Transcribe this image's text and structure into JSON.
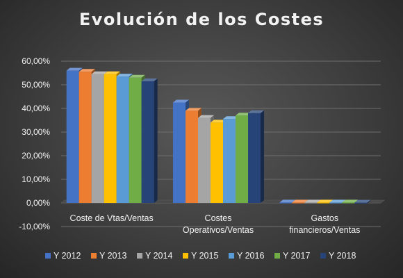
{
  "chart_data": {
    "type": "bar",
    "title": "Evolución de los Costes",
    "categories": [
      "Coste de Vtas/Ventas",
      "Costes Operativos/Ventas",
      "Gastos financieros/Ventas"
    ],
    "category_lines": [
      [
        "Coste de Vtas/Ventas"
      ],
      [
        "Costes",
        "Operativos/Ventas"
      ],
      [
        "Gastos",
        "financieros/Ventas"
      ]
    ],
    "series": [
      {
        "name": "Y 2012",
        "color": "#4472C4",
        "values": [
          0.56,
          0.425,
          0.002
        ]
      },
      {
        "name": "Y 2013",
        "color": "#ED7D31",
        "values": [
          0.555,
          0.39,
          0.002
        ]
      },
      {
        "name": "Y 2014",
        "color": "#A5A5A5",
        "values": [
          0.545,
          0.36,
          0.002
        ]
      },
      {
        "name": "Y 2015",
        "color": "#FFC000",
        "values": [
          0.545,
          0.34,
          0.002
        ]
      },
      {
        "name": "Y 2016",
        "color": "#5B9BD5",
        "values": [
          0.535,
          0.355,
          0.002
        ]
      },
      {
        "name": "Y 2017",
        "color": "#70AD47",
        "values": [
          0.53,
          0.37,
          0.002
        ]
      },
      {
        "name": "Y 2018",
        "color": "#264478",
        "values": [
          0.515,
          0.38,
          0.001
        ]
      }
    ],
    "ylim": [
      -0.1,
      0.6
    ],
    "yticks": [
      "-10,00%",
      "0,00%",
      "10,00%",
      "20,00%",
      "30,00%",
      "40,00%",
      "50,00%",
      "60,00%"
    ],
    "ytick_values": [
      -0.1,
      0,
      0.1,
      0.2,
      0.3,
      0.4,
      0.5,
      0.6
    ],
    "grid": true,
    "legend_position": "bottom",
    "style": "3d-clustered-column"
  }
}
